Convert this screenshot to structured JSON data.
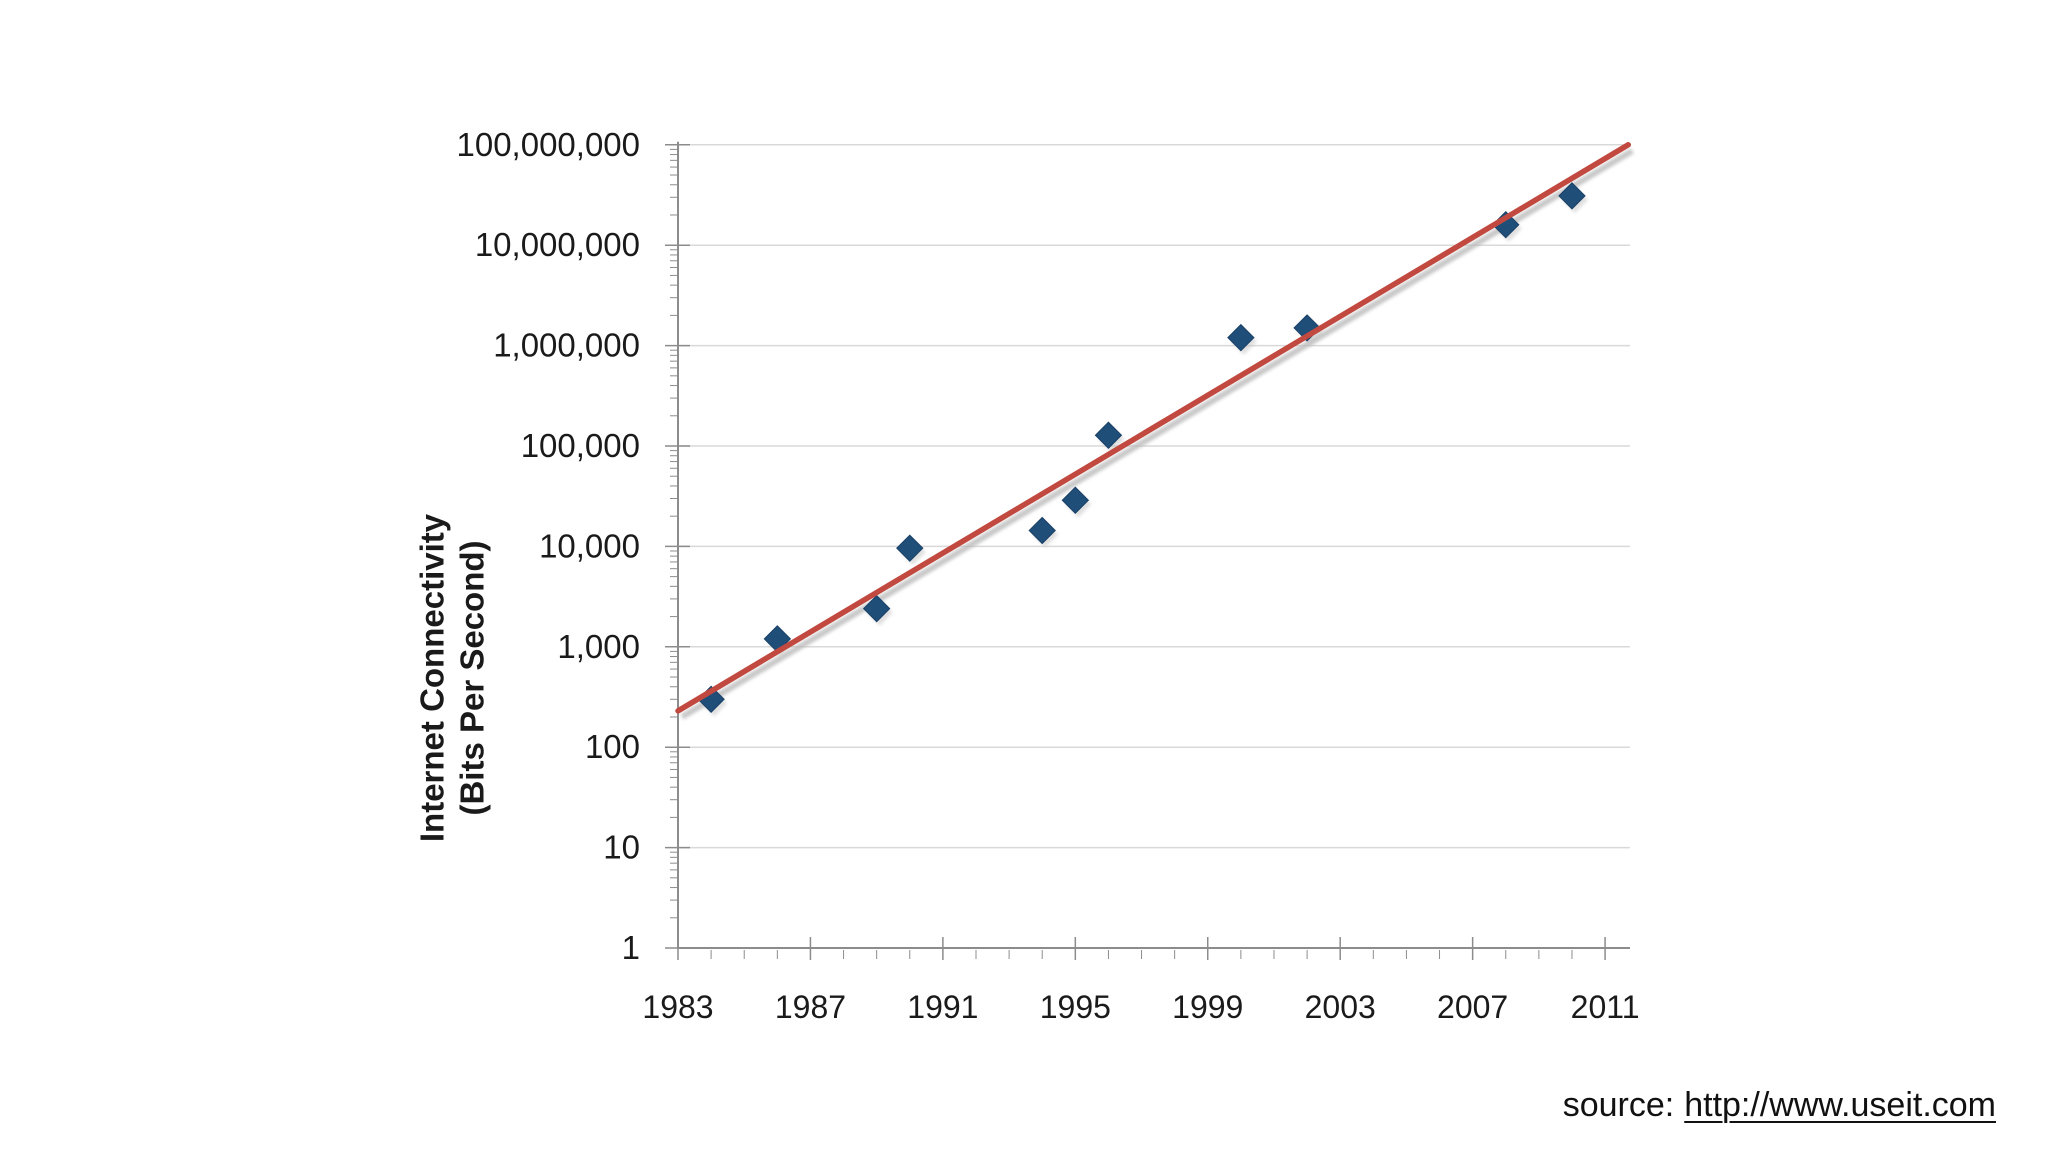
{
  "page": {
    "background": "#ffffff"
  },
  "chart_data": {
    "type": "scatter",
    "title": "",
    "xlabel": "",
    "ylabel": "Internet Connectivity (Bits Per Second)",
    "ylabel_lines": [
      "Internet Connectivity",
      "(Bits Per Second)"
    ],
    "y_scale": "log10",
    "xlim": [
      1983,
      2011.7
    ],
    "ylim": [
      1,
      100000000
    ],
    "grid": "horizontal-only",
    "legend": "none",
    "x_tick_years": [
      1983,
      1987,
      1991,
      1995,
      1999,
      2003,
      2007,
      2011
    ],
    "x_tick_labels": [
      "1983",
      "1987",
      "1991",
      "1995",
      "1999",
      "2003",
      "2007",
      "2011"
    ],
    "x_minor_tick_step_years": 1,
    "y_tick_values": [
      1,
      10,
      100,
      1000,
      10000,
      100000,
      1000000,
      10000000,
      100000000
    ],
    "y_tick_labels": [
      "1",
      "10",
      "100",
      "1,000",
      "10,000",
      "100,000",
      "1,000,000",
      "10,000,000",
      "100,000,000"
    ],
    "points": [
      {
        "year": 1984,
        "bps": 300
      },
      {
        "year": 1986,
        "bps": 1200
      },
      {
        "year": 1989,
        "bps": 2400
      },
      {
        "year": 1990,
        "bps": 9600
      },
      {
        "year": 1994,
        "bps": 14400
      },
      {
        "year": 1995,
        "bps": 28800
      },
      {
        "year": 1996,
        "bps": 128000
      },
      {
        "year": 2000,
        "bps": 1200000
      },
      {
        "year": 2002,
        "bps": 1500000
      },
      {
        "year": 2008,
        "bps": 16000000
      },
      {
        "year": 2010,
        "bps": 31000000
      }
    ],
    "trendline": {
      "start": {
        "year": 1983,
        "bps": 230
      },
      "end": {
        "year": 2011.7,
        "bps": 100000000
      }
    },
    "marker": {
      "shape": "diamond",
      "color": "#1f4e79"
    },
    "colors": {
      "marker": "#1f4e79",
      "marker_shadow": "#c0c0c0",
      "trendline": "#c1493f",
      "trendline_shadow": "#b5b5b5",
      "gridline": "#d9d9d9",
      "axis": "#8c8c8c",
      "tick": "#8c8c8c",
      "label": "#1a1a1a"
    }
  },
  "source": {
    "prefix": "source:",
    "url_text": "http://www.useit.com"
  }
}
